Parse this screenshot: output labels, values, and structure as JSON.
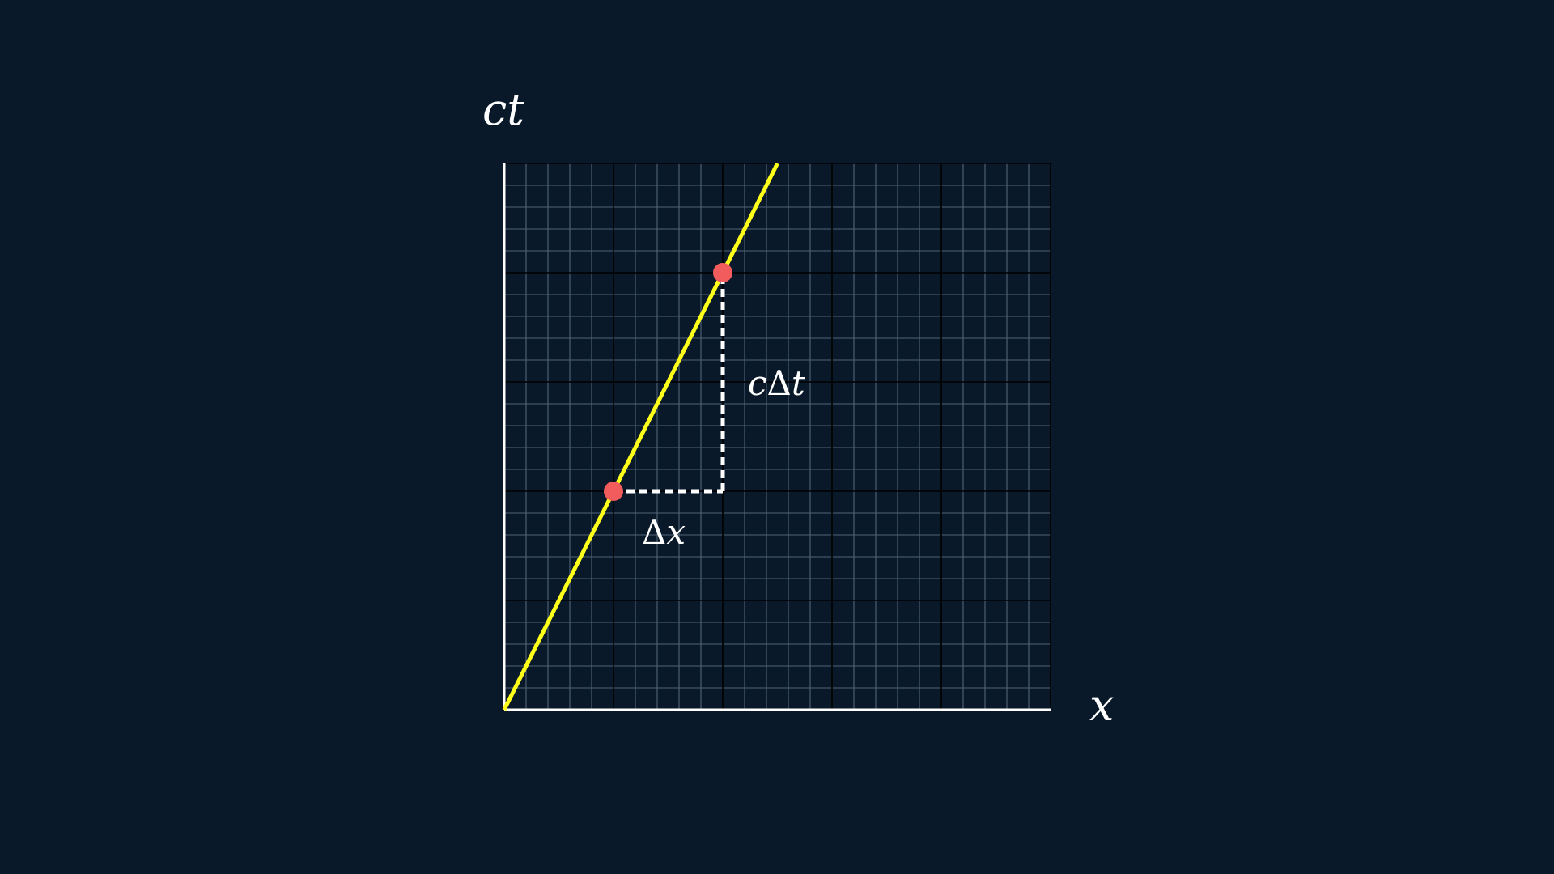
{
  "colors": {
    "background": "#0a1929",
    "grid_major": "#000000",
    "grid_minor": "#4f6478",
    "axis": "#ffffff",
    "worldline": "#ffff1a",
    "event_point": "#f25c5c",
    "guide": "#ffffff",
    "label": "#ffffff"
  },
  "diagram": {
    "type": "spacetime-diagram",
    "x_axis_label": "x",
    "y_axis_label": "ct",
    "x_range": [
      0,
      5
    ],
    "y_range": [
      0,
      5
    ],
    "grid_minor_per_major": 5,
    "worldline": {
      "from": [
        0,
        0
      ],
      "to": [
        2.5,
        5
      ]
    },
    "events": [
      {
        "name": "event-1",
        "x": 1,
        "y": 2
      },
      {
        "name": "event-2",
        "x": 2,
        "y": 4
      }
    ],
    "labels": {
      "delta_x": {
        "prefix": "Δ",
        "var": "x"
      },
      "c_delta_t": {
        "c": "c",
        "delta": "Δ",
        "t": "t"
      }
    }
  }
}
